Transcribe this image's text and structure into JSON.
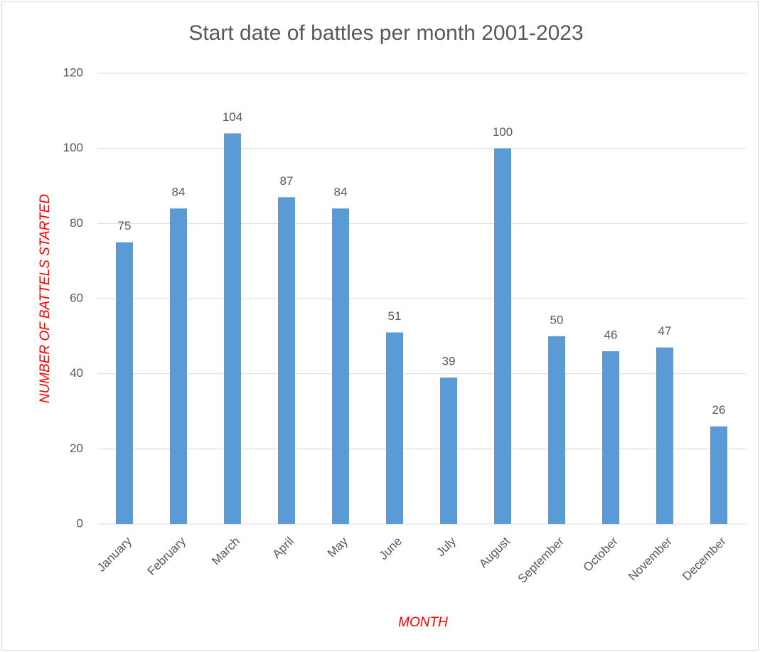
{
  "chart_data": {
    "type": "bar",
    "title": "Start date of battles per month 2001-2023",
    "x_label": "MONTH",
    "y_label": "NUMBER OF BATTELS STARTED",
    "categories": [
      "January",
      "February",
      "March",
      "April",
      "May",
      "June",
      "July",
      "August",
      "September",
      "October",
      "November",
      "December"
    ],
    "values": [
      75,
      84,
      104,
      87,
      84,
      51,
      39,
      100,
      50,
      46,
      47,
      26
    ],
    "color": "#5b9bd5",
    "ylim": [
      0,
      120
    ],
    "yticks": [
      0,
      20,
      40,
      60,
      80,
      100,
      120
    ],
    "grid": true,
    "data_labels": true
  }
}
